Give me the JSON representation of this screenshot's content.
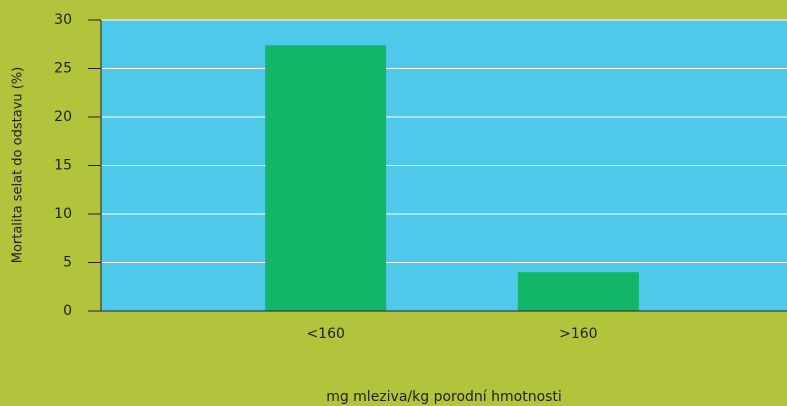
{
  "chart_data": {
    "type": "bar",
    "categories": [
      "<160",
      ">160"
    ],
    "values": [
      27.4,
      4.0
    ],
    "color": "#13b566",
    "xlabel": "mg mleziva/kg porodní hmotnosti",
    "ylabel": "Mortalita selat do odstavu (%)",
    "ylim": [
      0,
      30
    ],
    "yticks": [
      0,
      5,
      10,
      15,
      20,
      25,
      30
    ],
    "grid": true
  }
}
